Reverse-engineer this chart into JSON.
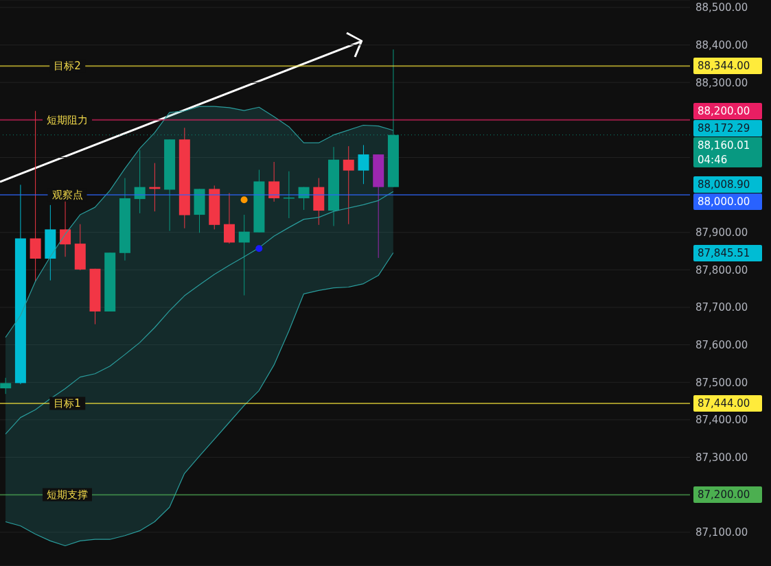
{
  "chart_data": {
    "type": "candlestick",
    "categories": [
      null,
      null,
      null,
      null,
      null,
      null,
      null,
      null,
      null,
      null,
      null,
      null,
      null,
      null,
      null,
      null,
      null,
      null,
      null,
      null,
      null,
      null,
      null,
      null,
      null,
      null,
      null
    ],
    "ohlc": [
      [
        87484,
        87512,
        87469,
        87498
      ],
      [
        87498,
        88027,
        87495,
        87884
      ],
      [
        87884,
        88224,
        87769,
        87830
      ],
      [
        87830,
        87973,
        87772,
        87908
      ],
      [
        87908,
        87983,
        87835,
        87868
      ],
      [
        87870,
        87922,
        87799,
        87801
      ],
      [
        87803,
        87803,
        87655,
        87689
      ],
      [
        87689,
        87846,
        87689,
        87846
      ],
      [
        87845,
        88045,
        87825,
        87991
      ],
      [
        87989,
        88119,
        87951,
        88021
      ],
      [
        88021,
        88085,
        87956,
        88016
      ],
      [
        88014,
        88148,
        87904,
        88148
      ],
      [
        88148,
        88179,
        87911,
        87946
      ],
      [
        87947,
        88016,
        87899,
        88016
      ],
      [
        88016,
        88025,
        87908,
        87920
      ],
      [
        87922,
        88005,
        87870,
        87873
      ],
      [
        87873,
        87947,
        87732,
        87902
      ],
      [
        87900,
        88067,
        87900,
        88036
      ],
      [
        88036,
        88088,
        87982,
        87991
      ],
      [
        87993,
        88063,
        87938,
        87993
      ],
      [
        87991,
        88021,
        87960,
        88021
      ],
      [
        88021,
        88045,
        87920,
        87958
      ],
      [
        87958,
        88128,
        87917,
        88094
      ],
      [
        88094,
        88130,
        87922,
        88065
      ],
      [
        88065,
        88133,
        88029,
        88108
      ],
      [
        88108,
        88108,
        87832,
        88021
      ],
      [
        88021,
        88388,
        88021,
        88160.01
      ]
    ],
    "colors": [
      "#089981",
      "#00bcd4",
      "#f23645",
      "#00bcd4",
      "#f23645",
      "#f23645",
      "#f23645",
      "#089981",
      "#089981",
      "#089981",
      "#f23645",
      "#089981",
      "#f23645",
      "#089981",
      "#f23645",
      "#f23645",
      "#089981",
      "#089981",
      "#f23645",
      "#089981",
      "#089981",
      "#f23645",
      "#089981",
      "#f23645",
      "#00bcd4",
      "#9c27b0",
      "#089981"
    ],
    "series": [
      {
        "type": "line",
        "color": "#2a9d9d",
        "values": [
          87620,
          87678,
          87769,
          87835,
          87895,
          87947,
          87967,
          88012,
          88070,
          88124,
          88166,
          88220,
          88224,
          88236,
          88236,
          88233,
          88225,
          88234,
          88209,
          88182,
          88139,
          88139,
          88160,
          88173,
          88186,
          88184,
          88172.29
        ]
      },
      {
        "type": "line",
        "color": "#2a9d9d",
        "values": [
          87362,
          87406,
          87427,
          87456,
          87483,
          87514,
          87523,
          87543,
          87574,
          87606,
          87646,
          87691,
          87731,
          87760,
          87788,
          87812,
          87835,
          87859,
          87890,
          87913,
          87935,
          87940,
          87956,
          87965,
          87974,
          87985,
          88008.9
        ],
        "lower": [
          87128,
          87117,
          87095,
          87077,
          87064,
          87077,
          87081,
          87081,
          87091,
          87104,
          87128,
          87167,
          87257,
          87303,
          87348,
          87393,
          87438,
          87478,
          87546,
          87637,
          87736,
          87745,
          87752,
          87754,
          87763,
          87785,
          87845.51
        ],
        "upper": [
          87620,
          87678,
          87769,
          87835,
          87895,
          87947,
          87967,
          88012,
          88070,
          88124,
          88166,
          88220,
          88224,
          88236,
          88236,
          88233,
          88225,
          88234,
          88209,
          88182,
          88139,
          88139,
          88160,
          88173,
          88186,
          88184,
          88172.29
        ]
      },
      {
        "type": "line",
        "color": "#2a9d9d",
        "values": [
          87128,
          87117,
          87095,
          87077,
          87064,
          87077,
          87081,
          87081,
          87091,
          87104,
          87128,
          87167,
          87257,
          87303,
          87348,
          87393,
          87438,
          87478,
          87546,
          87637,
          87736,
          87745,
          87752,
          87754,
          87763,
          87785,
          87845.51
        ]
      },
      {
        "type": "scatter",
        "color": "#ff9800",
        "marker": "circle",
        "values": [
          null,
          null,
          null,
          null,
          null,
          null,
          null,
          null,
          null,
          null,
          null,
          null,
          null,
          null,
          null,
          null,
          87987,
          null,
          null,
          null,
          null,
          null,
          null,
          null,
          null,
          null,
          null
        ]
      },
      {
        "type": "scatter",
        "color": "#1a1aff",
        "marker": "circle",
        "values": [
          null,
          null,
          null,
          null,
          null,
          null,
          null,
          null,
          null,
          null,
          null,
          null,
          null,
          null,
          null,
          null,
          null,
          87857,
          null,
          null,
          null,
          null,
          null,
          null,
          null,
          null,
          null
        ]
      }
    ],
    "ylim": [
      87010,
      88520
    ],
    "yticks": [
      {
        "value": 87100,
        "label": "87,100.00"
      },
      {
        "value": 87200,
        "label": null
      },
      {
        "value": 87300,
        "label": "87,300.00"
      },
      {
        "value": 87400,
        "label": "87,400.00"
      },
      {
        "value": 87500,
        "label": "87,500.00"
      },
      {
        "value": 87600,
        "label": "87,600.00"
      },
      {
        "value": 87700,
        "label": "87,700.00"
      },
      {
        "value": 87800,
        "label": "87,800.00"
      },
      {
        "value": 87900,
        "label": "87,900.00"
      },
      {
        "value": 88000,
        "label": null
      },
      {
        "value": 88100,
        "label": null
      },
      {
        "value": 88200,
        "label": null
      },
      {
        "value": 88300,
        "label": "88,300.00"
      },
      {
        "value": 88400,
        "label": "88,400.00"
      },
      {
        "value": 88500,
        "label": "88,500.00"
      }
    ],
    "tick_labels": "y",
    "grid": "y",
    "ref_lines": [
      {
        "axis": "y",
        "value": 88344,
        "label": "目标2",
        "color": "#ffeb3b"
      },
      {
        "axis": "y",
        "value": 88200,
        "label": "短期阻力",
        "color": "#e91e63"
      },
      {
        "axis": "y",
        "value": 88000,
        "label": "观察点",
        "color": "#2962ff"
      },
      {
        "axis": "y",
        "value": 87444,
        "label": "目标1",
        "color": "#ffeb3b"
      },
      {
        "axis": "y",
        "value": 87200,
        "label": "短期支撑",
        "color": "#4caf50"
      },
      {
        "axis": "y",
        "value": 88160.01,
        "label": null,
        "color": "#089981",
        "line_style": "dotted"
      }
    ],
    "annotations": [
      "88,344.00",
      "88,200.00",
      "88,172.29",
      "88,160.01",
      "88,008.90",
      "88,000.00",
      "87,845.51",
      "87,444.00",
      "87,200.00",
      "04:46"
    ]
  }
}
